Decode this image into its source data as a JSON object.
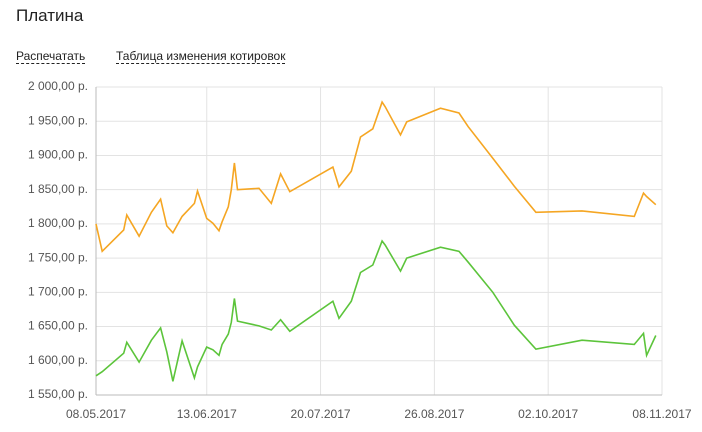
{
  "header": {
    "title": "Платина",
    "links": [
      "Распечатать",
      "Таблица изменения котировок"
    ]
  },
  "chart_data": {
    "type": "line",
    "x": [
      "2017-05-08",
      "2017-05-10",
      "2017-05-17",
      "2017-05-18",
      "2017-05-22",
      "2017-05-26",
      "2017-05-29",
      "2017-05-31",
      "2017-06-02",
      "2017-06-05",
      "2017-06-09",
      "2017-06-10",
      "2017-06-13",
      "2017-06-15",
      "2017-06-17",
      "2017-06-18",
      "2017-06-20",
      "2017-06-21",
      "2017-06-22",
      "2017-06-23",
      "2017-06-30",
      "2017-07-04",
      "2017-07-07",
      "2017-07-10",
      "2017-07-24",
      "2017-07-26",
      "2017-07-30",
      "2017-08-02",
      "2017-08-06",
      "2017-08-09",
      "2017-08-10",
      "2017-08-15",
      "2017-08-17",
      "2017-08-28",
      "2017-09-03",
      "2017-09-06",
      "2017-09-14",
      "2017-09-21",
      "2017-09-28",
      "2017-10-13",
      "2017-10-30",
      "2017-11-02",
      "2017-11-03",
      "2017-11-06"
    ],
    "series": [
      {
        "color": "#f5a623",
        "values": [
          1800,
          1760,
          1791,
          1813,
          1782,
          1817,
          1836,
          1797,
          1787,
          1811,
          1830,
          1848,
          1808,
          1801,
          1790,
          1803,
          1825,
          1850,
          1889,
          1850,
          1852,
          1830,
          1873,
          1847,
          1883,
          1854,
          1877,
          1927,
          1939,
          1978,
          1971,
          1930,
          1949,
          1969,
          1962,
          1942,
          1896,
          1855,
          1817,
          1819,
          1811,
          1845,
          1840,
          1828
        ]
      },
      {
        "color": "#5cc43b",
        "values": [
          1578,
          1584,
          1611,
          1627,
          1598,
          1630,
          1648,
          1613,
          1570,
          1629,
          1575,
          1591,
          1620,
          1616,
          1608,
          1624,
          1639,
          1656,
          1691,
          1658,
          1651,
          1645,
          1660,
          1643,
          1687,
          1662,
          1687,
          1729,
          1740,
          1775,
          1769,
          1731,
          1750,
          1766,
          1760,
          1744,
          1700,
          1652,
          1617,
          1630,
          1624,
          1640,
          1608,
          1637
        ]
      }
    ],
    "xlim": [
      "2017-05-08",
      "2017-11-08"
    ],
    "xticks": [
      {
        "value": "2017-05-08",
        "label": "08.05.2017"
      },
      {
        "value": "2017-06-13",
        "label": "13.06.2017"
      },
      {
        "value": "2017-07-20",
        "label": "20.07.2017"
      },
      {
        "value": "2017-08-26",
        "label": "26.08.2017"
      },
      {
        "value": "2017-10-02",
        "label": "02.10.2017"
      },
      {
        "value": "2017-11-08",
        "label": "08.11.2017"
      }
    ],
    "ylim": [
      1550,
      2000
    ],
    "yticks": [
      {
        "value": 1550,
        "label": "1 550,00 р."
      },
      {
        "value": 1600,
        "label": "1 600,00 р."
      },
      {
        "value": 1650,
        "label": "1 650,00 р."
      },
      {
        "value": 1700,
        "label": "1 700,00 р."
      },
      {
        "value": 1750,
        "label": "1 750,00 р."
      },
      {
        "value": 1800,
        "label": "1 800,00 р."
      },
      {
        "value": 1850,
        "label": "1 850,00 р."
      },
      {
        "value": 1900,
        "label": "1 900,00 р."
      },
      {
        "value": 1950,
        "label": "1 950,00 р."
      },
      {
        "value": 2000,
        "label": "2 000,00 р."
      }
    ],
    "grid": true
  }
}
